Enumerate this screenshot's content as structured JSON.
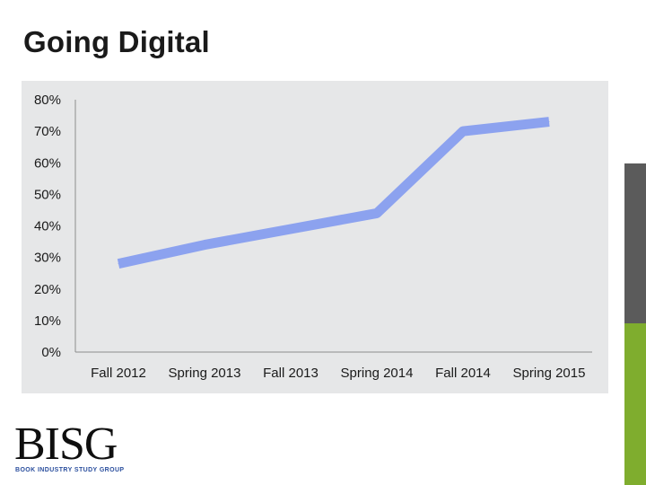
{
  "slide": {
    "title": "Going Digital"
  },
  "colors": {
    "plot_background": "#e6e7e8",
    "line": "#8ca2ef",
    "axis": "#8c8c8c",
    "side_bar_top": "#ffffff",
    "side_bar_middle": "#5b5b5b",
    "side_bar_bottom": "#7fad2e"
  },
  "logo": {
    "wordmark": "BISG",
    "tagline": "BOOK INDUSTRY STUDY GROUP"
  },
  "chart_data": {
    "type": "line",
    "title": "",
    "xlabel": "",
    "ylabel": "",
    "categories": [
      "Fall 2012",
      "Spring 2013",
      "Fall 2013",
      "Spring 2014",
      "Fall 2014",
      "Spring 2015"
    ],
    "series": [
      {
        "name": "",
        "values": [
          28,
          34,
          39,
          44,
          70,
          73
        ]
      }
    ],
    "ylim": [
      0,
      80
    ],
    "y_ticks": [
      "0%",
      "10%",
      "20%",
      "30%",
      "40%",
      "50%",
      "60%",
      "70%",
      "80%"
    ],
    "y_tick_values": [
      0,
      10,
      20,
      30,
      40,
      50,
      60,
      70,
      80
    ],
    "grid": false,
    "legend": "none"
  }
}
